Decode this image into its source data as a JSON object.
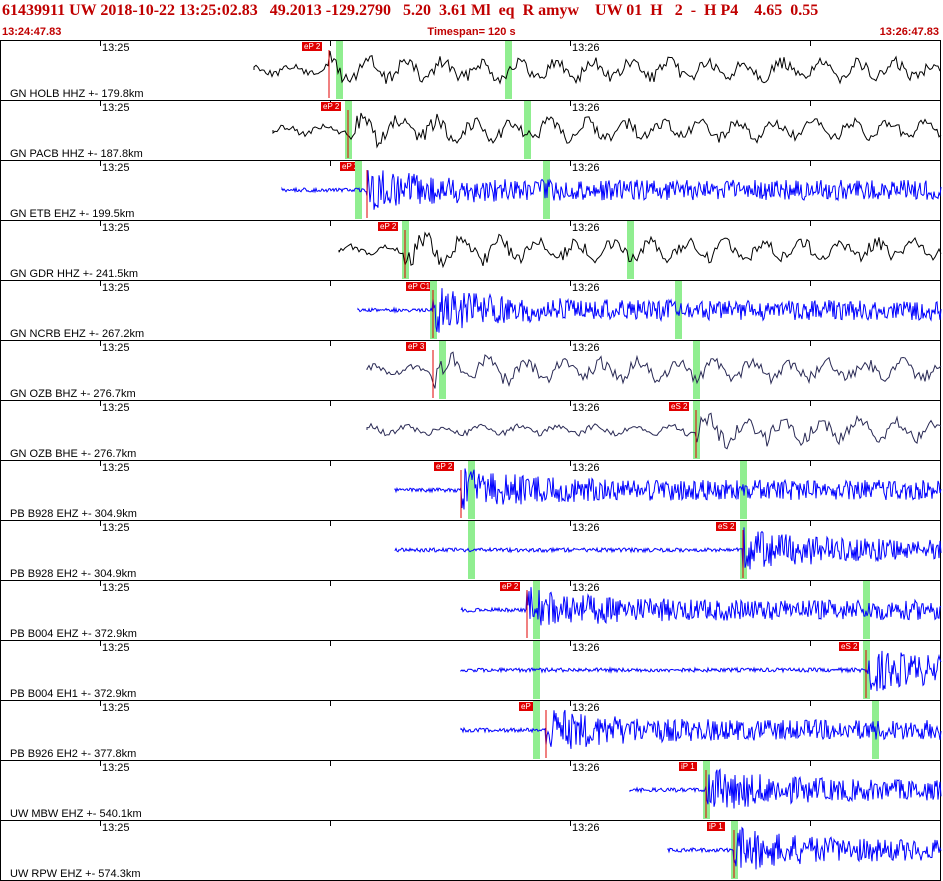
{
  "header": {
    "event_line": "61439911 UW 2018-10-22 13:25:02.83   49.2013 -129.2790   5.20  3.61 Ml  eq  R amyw    UW 01  H   2  -  H P4    4.65  0.55",
    "start_time": "13:24:47.83",
    "timespan": "Timespan= 120 s",
    "end_time": "13:26:47.83"
  },
  "time_marks": [
    "13:25",
    "13:26"
  ],
  "colors": {
    "header_red": "#c00000",
    "trace_black": "#000000",
    "trace_blue": "#0000ff",
    "trace_dark": "#2a2a55",
    "pick_red": "#e00000",
    "window_green": "#90ee90"
  },
  "channels": [
    {
      "label": "GN HOLB HHZ +- 179.8km",
      "pick": "eP 2",
      "pick_t": 0.35,
      "green": [
        0.36,
        0.54
      ],
      "start": 0.27,
      "color": "#000000",
      "kind": "lowfreq"
    },
    {
      "label": "GN PACB HHZ +- 187.8km",
      "pick": "eP 2",
      "pick_t": 0.37,
      "green": [
        0.37,
        0.56
      ],
      "start": 0.29,
      "color": "#000000",
      "kind": "lowfreq"
    },
    {
      "label": "GN ETB EHZ +- 199.5km",
      "pick": "eP 2",
      "pick_t": 0.39,
      "green": [
        0.38,
        0.58
      ],
      "start": 0.3,
      "color": "#0000ff",
      "kind": "hf"
    },
    {
      "label": "GN GDR HHZ +- 241.5km",
      "pick": "eP 2",
      "pick_t": 0.43,
      "green": [
        0.43,
        0.67
      ],
      "start": 0.36,
      "color": "#000000",
      "kind": "lowfreq"
    },
    {
      "label": "GN NCRB EHZ +- 267.2km",
      "pick": "eP C1",
      "pick_t": 0.46,
      "green": [
        0.46,
        0.72
      ],
      "start": 0.38,
      "color": "#0000ff",
      "kind": "hf"
    },
    {
      "label": "GN OZB BHZ +- 276.7km",
      "pick": "eP 3",
      "pick_t": 0.46,
      "green": [
        0.47,
        0.74
      ],
      "start": 0.39,
      "color": "#2a2a55",
      "kind": "lowfreq"
    },
    {
      "label": "GN OZB BHE +- 276.7km",
      "pick": "eS 2",
      "pick_t": 0.74,
      "green": [
        0.74
      ],
      "start": 0.39,
      "color": "#2a2a55",
      "kind": "lowfreq"
    },
    {
      "label": "PB B928 EHZ +- 304.9km",
      "pick": "eP 2",
      "pick_t": 0.49,
      "green": [
        0.5,
        0.79
      ],
      "start": 0.42,
      "color": "#0000ff",
      "kind": "hf"
    },
    {
      "label": "PB B928 EH2 +- 304.9km",
      "pick": "eS 2",
      "pick_t": 0.79,
      "green": [
        0.5,
        0.79
      ],
      "start": 0.42,
      "color": "#0000ff",
      "kind": "hf"
    },
    {
      "label": "PB B004 EHZ +- 372.9km",
      "pick": "eP 2",
      "pick_t": 0.56,
      "green": [
        0.57,
        0.92
      ],
      "start": 0.49,
      "color": "#0000ff",
      "kind": "hf"
    },
    {
      "label": "PB B004 EH1 +- 372.9km",
      "pick": "eS 2",
      "pick_t": 0.92,
      "green": [
        0.57,
        0.92
      ],
      "start": 0.49,
      "color": "#0000ff",
      "kind": "hf"
    },
    {
      "label": "PB B926 EH2 +- 377.8km",
      "pick": "eP 2",
      "pick_t": 0.58,
      "green": [
        0.57,
        0.93
      ],
      "start": 0.49,
      "color": "#0000ff",
      "kind": "hf"
    },
    {
      "label": "UW MBW EHZ +- 540.1km",
      "pick": "iP 1",
      "pick_t": 0.75,
      "green": [
        0.75
      ],
      "start": 0.67,
      "color": "#0000ff",
      "kind": "hf"
    },
    {
      "label": "UW RPW EHZ +- 574.3km",
      "pick": "iP 1",
      "pick_t": 0.78,
      "green": [
        0.78
      ],
      "start": 0.71,
      "color": "#0000ff",
      "kind": "hf"
    }
  ]
}
